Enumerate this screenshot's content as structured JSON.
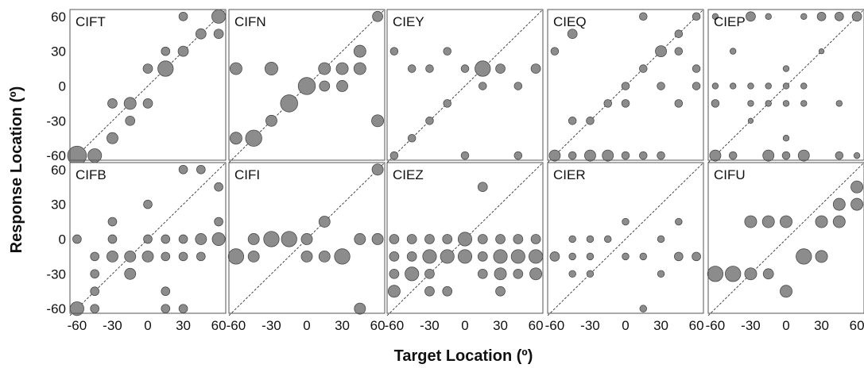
{
  "chart_data": {
    "type": "scatter",
    "xlabel": "Target Location (º)",
    "ylabel": "Response Location (º)",
    "xlim": [
      -66,
      66
    ],
    "ylim": [
      -64,
      66
    ],
    "x_ticks": [
      "-60",
      "-30",
      "0",
      "30",
      "60"
    ],
    "y_ticks": [
      "60",
      "30",
      "0",
      "-30",
      "-60"
    ],
    "identity_line": true,
    "bubble_size": "proportion of responses",
    "panels": [
      {
        "title": "CIFT",
        "points": [
          {
            "x": -60,
            "y": -60,
            "s": 2.2
          },
          {
            "x": -45,
            "y": -60,
            "s": 1.6
          },
          {
            "x": -30,
            "y": -45,
            "s": 1.3
          },
          {
            "x": -30,
            "y": -15,
            "s": 1.1
          },
          {
            "x": -15,
            "y": -15,
            "s": 1.4
          },
          {
            "x": -15,
            "y": -30,
            "s": 1.1
          },
          {
            "x": 0,
            "y": -15,
            "s": 1.1
          },
          {
            "x": 0,
            "y": 15,
            "s": 1.1
          },
          {
            "x": 15,
            "y": 15,
            "s": 1.8
          },
          {
            "x": 15,
            "y": 30,
            "s": 1.0
          },
          {
            "x": 30,
            "y": 30,
            "s": 1.2
          },
          {
            "x": 30,
            "y": 60,
            "s": 1.0
          },
          {
            "x": 45,
            "y": 45,
            "s": 1.2
          },
          {
            "x": 60,
            "y": 60,
            "s": 1.6
          },
          {
            "x": 60,
            "y": 45,
            "s": 1.1
          }
        ]
      },
      {
        "title": "CIFN",
        "points": [
          {
            "x": -60,
            "y": 15,
            "s": 1.4
          },
          {
            "x": -60,
            "y": -45,
            "s": 1.4
          },
          {
            "x": -45,
            "y": -45,
            "s": 1.9
          },
          {
            "x": -30,
            "y": -30,
            "s": 1.3
          },
          {
            "x": -30,
            "y": 15,
            "s": 1.5
          },
          {
            "x": -15,
            "y": -15,
            "s": 2.0
          },
          {
            "x": 0,
            "y": 0,
            "s": 2.0
          },
          {
            "x": 15,
            "y": 15,
            "s": 1.4
          },
          {
            "x": 15,
            "y": 0,
            "s": 1.2
          },
          {
            "x": 30,
            "y": 15,
            "s": 1.4
          },
          {
            "x": 30,
            "y": 0,
            "s": 1.3
          },
          {
            "x": 45,
            "y": 30,
            "s": 1.4
          },
          {
            "x": 45,
            "y": 15,
            "s": 1.4
          },
          {
            "x": 60,
            "y": 60,
            "s": 1.2
          },
          {
            "x": 60,
            "y": -30,
            "s": 1.4
          }
        ]
      },
      {
        "title": "CIEY",
        "points": [
          {
            "x": -60,
            "y": 30,
            "s": 0.9
          },
          {
            "x": -60,
            "y": -60,
            "s": 0.9
          },
          {
            "x": -45,
            "y": 15,
            "s": 0.9
          },
          {
            "x": -45,
            "y": -45,
            "s": 0.9
          },
          {
            "x": -30,
            "y": 15,
            "s": 0.9
          },
          {
            "x": -30,
            "y": -30,
            "s": 0.9
          },
          {
            "x": -15,
            "y": 30,
            "s": 0.9
          },
          {
            "x": -15,
            "y": -15,
            "s": 0.9
          },
          {
            "x": 0,
            "y": 15,
            "s": 0.9
          },
          {
            "x": 0,
            "y": -60,
            "s": 0.9
          },
          {
            "x": 15,
            "y": 15,
            "s": 1.8
          },
          {
            "x": 15,
            "y": 0,
            "s": 0.9
          },
          {
            "x": 30,
            "y": 15,
            "s": 1.1
          },
          {
            "x": 45,
            "y": 0,
            "s": 0.9
          },
          {
            "x": 45,
            "y": -60,
            "s": 0.9
          },
          {
            "x": 60,
            "y": 15,
            "s": 1.1
          }
        ]
      },
      {
        "title": "CIEQ",
        "points": [
          {
            "x": -60,
            "y": 30,
            "s": 0.9
          },
          {
            "x": -60,
            "y": -60,
            "s": 1.3
          },
          {
            "x": -45,
            "y": 45,
            "s": 1.1
          },
          {
            "x": -45,
            "y": -30,
            "s": 0.9
          },
          {
            "x": -45,
            "y": -60,
            "s": 0.9
          },
          {
            "x": -30,
            "y": -30,
            "s": 0.9
          },
          {
            "x": -30,
            "y": -60,
            "s": 1.3
          },
          {
            "x": -15,
            "y": -15,
            "s": 0.9
          },
          {
            "x": -15,
            "y": -60,
            "s": 1.3
          },
          {
            "x": 0,
            "y": 0,
            "s": 0.9
          },
          {
            "x": 0,
            "y": -15,
            "s": 0.9
          },
          {
            "x": 0,
            "y": -60,
            "s": 0.9
          },
          {
            "x": 15,
            "y": 15,
            "s": 0.9
          },
          {
            "x": 15,
            "y": 60,
            "s": 0.9
          },
          {
            "x": 15,
            "y": -60,
            "s": 0.9
          },
          {
            "x": 30,
            "y": 30,
            "s": 1.3
          },
          {
            "x": 30,
            "y": 0,
            "s": 0.9
          },
          {
            "x": 30,
            "y": -60,
            "s": 0.9
          },
          {
            "x": 45,
            "y": 45,
            "s": 0.9
          },
          {
            "x": 45,
            "y": 30,
            "s": 0.9
          },
          {
            "x": 45,
            "y": -15,
            "s": 0.9
          },
          {
            "x": 60,
            "y": 60,
            "s": 0.9
          },
          {
            "x": 60,
            "y": 15,
            "s": 0.9
          },
          {
            "x": 60,
            "y": 0,
            "s": 0.9
          }
        ]
      },
      {
        "title": "CIEP",
        "points": [
          {
            "x": -60,
            "y": 60,
            "s": 0.7
          },
          {
            "x": -60,
            "y": 0,
            "s": 0.7
          },
          {
            "x": -60,
            "y": -15,
            "s": 0.9
          },
          {
            "x": -60,
            "y": -60,
            "s": 1.3
          },
          {
            "x": -45,
            "y": 30,
            "s": 0.7
          },
          {
            "x": -45,
            "y": 0,
            "s": 0.7
          },
          {
            "x": -45,
            "y": -60,
            "s": 0.9
          },
          {
            "x": -30,
            "y": 60,
            "s": 1.1
          },
          {
            "x": -30,
            "y": 0,
            "s": 0.7
          },
          {
            "x": -30,
            "y": -15,
            "s": 0.7
          },
          {
            "x": -30,
            "y": -30,
            "s": 0.6
          },
          {
            "x": -15,
            "y": 60,
            "s": 0.7
          },
          {
            "x": -15,
            "y": 0,
            "s": 0.7
          },
          {
            "x": -15,
            "y": -15,
            "s": 0.7
          },
          {
            "x": -15,
            "y": -60,
            "s": 1.3
          },
          {
            "x": 0,
            "y": 15,
            "s": 0.7
          },
          {
            "x": 0,
            "y": 0,
            "s": 0.7
          },
          {
            "x": 0,
            "y": -15,
            "s": 0.7
          },
          {
            "x": 0,
            "y": -45,
            "s": 0.7
          },
          {
            "x": 0,
            "y": -60,
            "s": 0.9
          },
          {
            "x": 15,
            "y": 60,
            "s": 0.7
          },
          {
            "x": 15,
            "y": 0,
            "s": 0.7
          },
          {
            "x": 15,
            "y": -15,
            "s": 0.7
          },
          {
            "x": 15,
            "y": -60,
            "s": 1.3
          },
          {
            "x": 30,
            "y": 60,
            "s": 1.0
          },
          {
            "x": 30,
            "y": 30,
            "s": 0.6
          },
          {
            "x": 45,
            "y": 60,
            "s": 1.0
          },
          {
            "x": 45,
            "y": -15,
            "s": 0.7
          },
          {
            "x": 45,
            "y": -60,
            "s": 0.9
          },
          {
            "x": 60,
            "y": 60,
            "s": 1.1
          },
          {
            "x": 60,
            "y": -60,
            "s": 0.7
          }
        ]
      },
      {
        "title": "CIFB",
        "points": [
          {
            "x": -60,
            "y": 0,
            "s": 1.0
          },
          {
            "x": -60,
            "y": -60,
            "s": 1.6
          },
          {
            "x": -45,
            "y": -15,
            "s": 1.0
          },
          {
            "x": -45,
            "y": -30,
            "s": 1.0
          },
          {
            "x": -45,
            "y": -45,
            "s": 1.0
          },
          {
            "x": -45,
            "y": -60,
            "s": 1.0
          },
          {
            "x": -30,
            "y": 15,
            "s": 1.0
          },
          {
            "x": -30,
            "y": 0,
            "s": 1.0
          },
          {
            "x": -30,
            "y": -15,
            "s": 1.3
          },
          {
            "x": -15,
            "y": -15,
            "s": 1.3
          },
          {
            "x": -15,
            "y": -30,
            "s": 1.3
          },
          {
            "x": 0,
            "y": 30,
            "s": 1.0
          },
          {
            "x": 0,
            "y": 0,
            "s": 1.0
          },
          {
            "x": 0,
            "y": -15,
            "s": 1.3
          },
          {
            "x": 15,
            "y": 0,
            "s": 1.0
          },
          {
            "x": 15,
            "y": -15,
            "s": 1.0
          },
          {
            "x": 15,
            "y": -45,
            "s": 1.0
          },
          {
            "x": 15,
            "y": -60,
            "s": 1.0
          },
          {
            "x": 30,
            "y": 60,
            "s": 1.0
          },
          {
            "x": 30,
            "y": 0,
            "s": 1.0
          },
          {
            "x": 30,
            "y": -15,
            "s": 1.0
          },
          {
            "x": 30,
            "y": -60,
            "s": 1.0
          },
          {
            "x": 45,
            "y": 60,
            "s": 1.0
          },
          {
            "x": 45,
            "y": 0,
            "s": 1.3
          },
          {
            "x": 45,
            "y": -15,
            "s": 1.0
          },
          {
            "x": 60,
            "y": 45,
            "s": 1.0
          },
          {
            "x": 60,
            "y": 15,
            "s": 1.0
          },
          {
            "x": 60,
            "y": 0,
            "s": 1.5
          }
        ]
      },
      {
        "title": "CIFI",
        "points": [
          {
            "x": -60,
            "y": -15,
            "s": 1.8
          },
          {
            "x": -45,
            "y": 0,
            "s": 1.3
          },
          {
            "x": -45,
            "y": -15,
            "s": 1.3
          },
          {
            "x": -30,
            "y": 0,
            "s": 1.8
          },
          {
            "x": -15,
            "y": 0,
            "s": 1.8
          },
          {
            "x": 0,
            "y": 0,
            "s": 1.3
          },
          {
            "x": 0,
            "y": -15,
            "s": 1.3
          },
          {
            "x": 15,
            "y": 15,
            "s": 1.3
          },
          {
            "x": 15,
            "y": -15,
            "s": 1.3
          },
          {
            "x": 30,
            "y": -15,
            "s": 1.8
          },
          {
            "x": 45,
            "y": 0,
            "s": 1.3
          },
          {
            "x": 45,
            "y": -60,
            "s": 1.3
          },
          {
            "x": 60,
            "y": 60,
            "s": 1.3
          },
          {
            "x": 60,
            "y": 0,
            "s": 1.3
          }
        ]
      },
      {
        "title": "CIEZ",
        "points": [
          {
            "x": -60,
            "y": 0,
            "s": 1.1
          },
          {
            "x": -60,
            "y": -15,
            "s": 1.1
          },
          {
            "x": -60,
            "y": -30,
            "s": 1.1
          },
          {
            "x": -60,
            "y": -45,
            "s": 1.4
          },
          {
            "x": -45,
            "y": 0,
            "s": 1.1
          },
          {
            "x": -45,
            "y": -15,
            "s": 1.1
          },
          {
            "x": -45,
            "y": -30,
            "s": 1.6
          },
          {
            "x": -30,
            "y": 0,
            "s": 1.1
          },
          {
            "x": -30,
            "y": -15,
            "s": 1.6
          },
          {
            "x": -30,
            "y": -30,
            "s": 1.1
          },
          {
            "x": -30,
            "y": -45,
            "s": 1.1
          },
          {
            "x": -15,
            "y": 0,
            "s": 1.1
          },
          {
            "x": -15,
            "y": -15,
            "s": 1.6
          },
          {
            "x": -15,
            "y": -45,
            "s": 1.1
          },
          {
            "x": 0,
            "y": 0,
            "s": 1.6
          },
          {
            "x": 0,
            "y": -15,
            "s": 1.6
          },
          {
            "x": 15,
            "y": 45,
            "s": 1.1
          },
          {
            "x": 15,
            "y": 0,
            "s": 1.1
          },
          {
            "x": 15,
            "y": -15,
            "s": 1.1
          },
          {
            "x": 15,
            "y": -30,
            "s": 1.1
          },
          {
            "x": 30,
            "y": 0,
            "s": 1.1
          },
          {
            "x": 30,
            "y": -15,
            "s": 1.6
          },
          {
            "x": 30,
            "y": -30,
            "s": 1.4
          },
          {
            "x": 30,
            "y": -45,
            "s": 1.1
          },
          {
            "x": 45,
            "y": 0,
            "s": 1.1
          },
          {
            "x": 45,
            "y": -15,
            "s": 1.6
          },
          {
            "x": 45,
            "y": -30,
            "s": 1.1
          },
          {
            "x": 60,
            "y": 0,
            "s": 1.1
          },
          {
            "x": 60,
            "y": -15,
            "s": 1.6
          },
          {
            "x": 60,
            "y": -30,
            "s": 1.4
          }
        ]
      },
      {
        "title": "CIER",
        "points": [
          {
            "x": -60,
            "y": -15,
            "s": 1.1
          },
          {
            "x": -45,
            "y": 0,
            "s": 0.8
          },
          {
            "x": -45,
            "y": -15,
            "s": 0.8
          },
          {
            "x": -45,
            "y": -30,
            "s": 0.8
          },
          {
            "x": -30,
            "y": 0,
            "s": 0.8
          },
          {
            "x": -30,
            "y": -15,
            "s": 0.8
          },
          {
            "x": -30,
            "y": -30,
            "s": 0.8
          },
          {
            "x": -15,
            "y": 0,
            "s": 0.8
          },
          {
            "x": 0,
            "y": 15,
            "s": 0.8
          },
          {
            "x": 0,
            "y": -15,
            "s": 0.8
          },
          {
            "x": 15,
            "y": -15,
            "s": 0.8
          },
          {
            "x": 15,
            "y": -60,
            "s": 0.8
          },
          {
            "x": 30,
            "y": 0,
            "s": 0.8
          },
          {
            "x": 30,
            "y": -30,
            "s": 0.8
          },
          {
            "x": 45,
            "y": 15,
            "s": 0.8
          },
          {
            "x": 45,
            "y": -15,
            "s": 1.0
          },
          {
            "x": 60,
            "y": -15,
            "s": 1.0
          }
        ]
      },
      {
        "title": "CIFU",
        "points": [
          {
            "x": -60,
            "y": -30,
            "s": 1.8
          },
          {
            "x": -45,
            "y": -30,
            "s": 1.8
          },
          {
            "x": -30,
            "y": 15,
            "s": 1.4
          },
          {
            "x": -30,
            "y": -30,
            "s": 1.4
          },
          {
            "x": -15,
            "y": 15,
            "s": 1.4
          },
          {
            "x": -15,
            "y": -30,
            "s": 1.2
          },
          {
            "x": 0,
            "y": 15,
            "s": 1.4
          },
          {
            "x": 0,
            "y": -45,
            "s": 1.4
          },
          {
            "x": 15,
            "y": -15,
            "s": 1.8
          },
          {
            "x": 30,
            "y": 15,
            "s": 1.4
          },
          {
            "x": 30,
            "y": -15,
            "s": 1.4
          },
          {
            "x": 45,
            "y": 30,
            "s": 1.4
          },
          {
            "x": 45,
            "y": 15,
            "s": 1.4
          },
          {
            "x": 60,
            "y": 45,
            "s": 1.4
          },
          {
            "x": 60,
            "y": 30,
            "s": 1.4
          }
        ]
      }
    ]
  }
}
